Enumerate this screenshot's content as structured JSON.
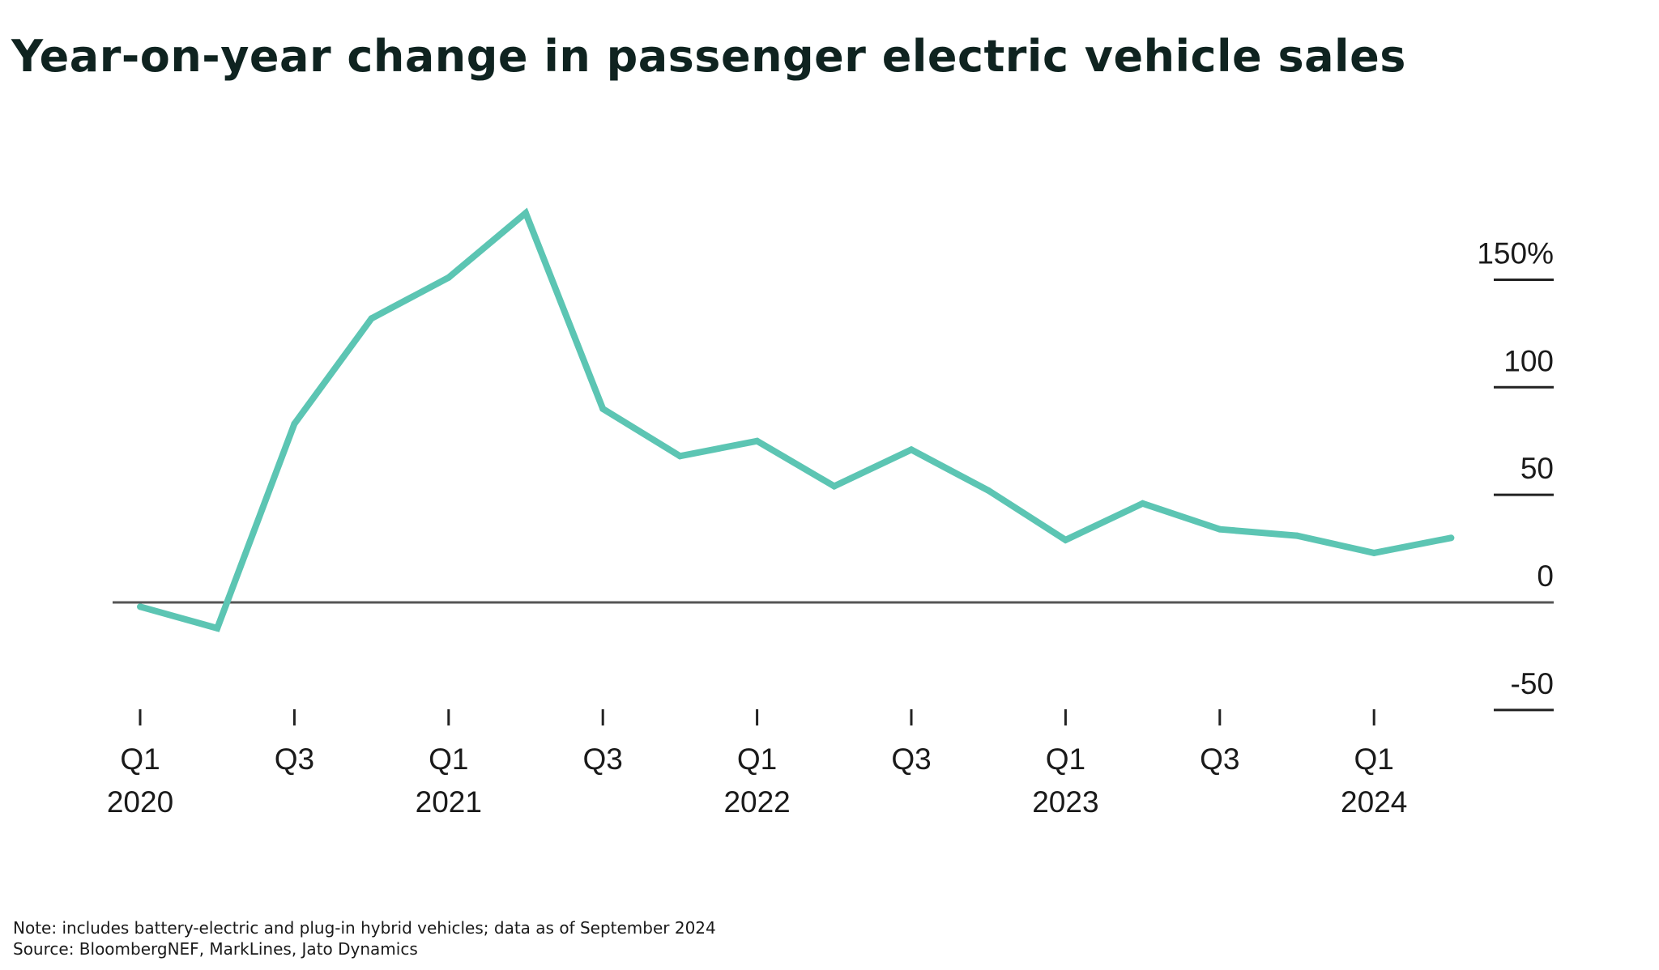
{
  "title": "Year-on-year change in passenger electric vehicle sales",
  "note": "Note: includes battery-electric and plug-in hybrid vehicles; data as of September 2024",
  "source": "Source: BloombergNEF, MarkLines, Jato Dynamics",
  "colors": {
    "series": "#5cc5b3",
    "axis": "#555555",
    "text": "#1a1a1a",
    "title": "#0f2320"
  },
  "chart_data": {
    "type": "line",
    "title": "Year-on-year change in passenger electric vehicle sales",
    "xlabel": "",
    "ylabel": "",
    "x": [
      "Q1 2020",
      "Q2 2020",
      "Q3 2020",
      "Q4 2020",
      "Q1 2021",
      "Q2 2021",
      "Q3 2021",
      "Q4 2021",
      "Q1 2022",
      "Q2 2022",
      "Q3 2022",
      "Q4 2022",
      "Q1 2023",
      "Q2 2023",
      "Q3 2023",
      "Q4 2023",
      "Q1 2024",
      "Q2 2024"
    ],
    "series": [
      {
        "values": [
          -2,
          -12,
          83,
          132,
          151,
          181,
          90,
          68,
          75,
          54,
          71,
          52,
          29,
          46,
          34,
          31,
          23,
          30
        ]
      }
    ],
    "ylim": [
      -50,
      150
    ],
    "yticks": [
      -50,
      0,
      50,
      100,
      150
    ],
    "ytick_labels": [
      "-50",
      "0",
      "50",
      "100",
      "150%"
    ],
    "xtick_labels": [
      {
        "quarter": "Q1",
        "year": "2020"
      },
      {
        "quarter": "Q3",
        "year": ""
      },
      {
        "quarter": "Q1",
        "year": "2021"
      },
      {
        "quarter": "Q3",
        "year": ""
      },
      {
        "quarter": "Q1",
        "year": "2022"
      },
      {
        "quarter": "Q3",
        "year": ""
      },
      {
        "quarter": "Q1",
        "year": "2023"
      },
      {
        "quarter": "Q3",
        "year": ""
      },
      {
        "quarter": "Q1",
        "year": "2024"
      }
    ],
    "y_axis_position": "right",
    "grid": false,
    "legend": "none"
  }
}
